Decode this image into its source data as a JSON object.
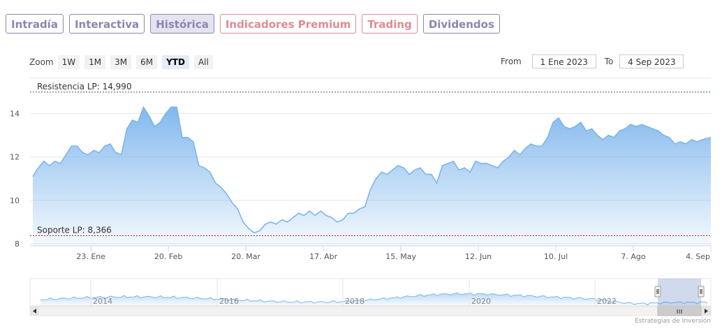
{
  "tabs": [
    {
      "label": "Intradía",
      "color": "#8b86b0",
      "active": false
    },
    {
      "label": "Interactiva",
      "color": "#8b86b0",
      "active": false
    },
    {
      "label": "Histórica",
      "color": "#8b86b0",
      "active": true
    },
    {
      "label": "Indicadores Premium",
      "color": "#e08b90",
      "active": false
    },
    {
      "label": "Trading",
      "color": "#e08b90",
      "active": false
    },
    {
      "label": "Dividendos",
      "color": "#8b86b0",
      "active": false
    }
  ],
  "zoom": {
    "label": "Zoom",
    "buttons": [
      "1W",
      "1M",
      "3M",
      "6M",
      "YTD",
      "All"
    ],
    "selected": "YTD"
  },
  "range": {
    "from_label": "From",
    "from_value": "1 Ene 2023",
    "to_label": "To",
    "to_value": "4 Sep 2023"
  },
  "credit": "Estrategias de Inversión",
  "colors": {
    "line": "#7cb5ec",
    "support_line": "#a52a2a",
    "resistance_line": "#2e6b2e"
  },
  "chart_data": {
    "type": "area",
    "title": "",
    "xlabel": "",
    "ylabel": "",
    "ylim": [
      7.9,
      15.6
    ],
    "xlim_days": [
      "2023-01-01",
      "2023-09-04"
    ],
    "y_ticks": [
      8,
      10,
      12,
      14
    ],
    "grid": true,
    "x_ticks": [
      {
        "date": "2023-01-23",
        "label": "23. Ene"
      },
      {
        "date": "2023-02-20",
        "label": "20. Feb"
      },
      {
        "date": "2023-03-20",
        "label": "20. Mar"
      },
      {
        "date": "2023-04-17",
        "label": "17. Abr"
      },
      {
        "date": "2023-05-15",
        "label": "15. May"
      },
      {
        "date": "2023-06-12",
        "label": "12. Jun"
      },
      {
        "date": "2023-07-10",
        "label": "10. Jul"
      },
      {
        "date": "2023-08-07",
        "label": "7. Ago"
      },
      {
        "date": "2023-09-04",
        "label": "4. Sep"
      }
    ],
    "plot_lines": [
      {
        "label": "Resistencia LP: 14,990",
        "value": 14.99
      },
      {
        "label": "Soporte LP: 8,366",
        "value": 8.366
      }
    ],
    "series": [
      {
        "x": [
          "2023-01-02",
          "2023-01-04",
          "2023-01-06",
          "2023-01-08",
          "2023-01-10",
          "2023-01-12",
          "2023-01-14",
          "2023-01-16",
          "2023-01-18",
          "2023-01-20",
          "2023-01-22",
          "2023-01-24",
          "2023-01-26",
          "2023-01-28",
          "2023-01-30",
          "2023-02-01",
          "2023-02-03",
          "2023-02-05",
          "2023-02-07",
          "2023-02-09",
          "2023-02-11",
          "2023-02-13",
          "2023-02-15",
          "2023-02-17",
          "2023-02-19",
          "2023-02-21",
          "2023-02-23",
          "2023-02-25",
          "2023-02-27",
          "2023-03-01",
          "2023-03-03",
          "2023-03-05",
          "2023-03-07",
          "2023-03-09",
          "2023-03-11",
          "2023-03-13",
          "2023-03-15",
          "2023-03-17",
          "2023-03-19",
          "2023-03-21",
          "2023-03-23",
          "2023-03-25",
          "2023-03-27",
          "2023-03-29",
          "2023-03-31",
          "2023-04-02",
          "2023-04-04",
          "2023-04-06",
          "2023-04-08",
          "2023-04-10",
          "2023-04-12",
          "2023-04-14",
          "2023-04-16",
          "2023-04-18",
          "2023-04-20",
          "2023-04-22",
          "2023-04-24",
          "2023-04-26",
          "2023-04-28",
          "2023-04-30",
          "2023-05-02",
          "2023-05-04",
          "2023-05-06",
          "2023-05-08",
          "2023-05-10",
          "2023-05-12",
          "2023-05-14",
          "2023-05-16",
          "2023-05-18",
          "2023-05-20",
          "2023-05-22",
          "2023-05-24",
          "2023-05-26",
          "2023-05-28",
          "2023-05-30",
          "2023-06-01",
          "2023-06-03",
          "2023-06-05",
          "2023-06-07",
          "2023-06-09",
          "2023-06-11",
          "2023-06-13",
          "2023-06-15",
          "2023-06-17",
          "2023-06-19",
          "2023-06-21",
          "2023-06-23",
          "2023-06-25",
          "2023-06-27",
          "2023-06-29",
          "2023-07-01",
          "2023-07-03",
          "2023-07-05",
          "2023-07-07",
          "2023-07-09",
          "2023-07-11",
          "2023-07-13",
          "2023-07-15",
          "2023-07-17",
          "2023-07-19",
          "2023-07-21",
          "2023-07-23",
          "2023-07-25",
          "2023-07-27",
          "2023-07-29",
          "2023-07-31",
          "2023-08-02",
          "2023-08-04",
          "2023-08-06",
          "2023-08-08",
          "2023-08-10",
          "2023-08-12",
          "2023-08-14",
          "2023-08-16",
          "2023-08-18",
          "2023-08-20",
          "2023-08-22",
          "2023-08-24",
          "2023-08-26",
          "2023-08-28",
          "2023-08-30",
          "2023-09-01",
          "2023-09-04"
        ],
        "values": [
          11.1,
          11.5,
          11.8,
          11.6,
          11.8,
          11.7,
          12.1,
          12.5,
          12.5,
          12.2,
          12.1,
          12.3,
          12.2,
          12.5,
          12.6,
          12.2,
          12.1,
          13.3,
          13.7,
          13.6,
          14.3,
          13.9,
          13.4,
          13.6,
          14.0,
          14.3,
          14.3,
          12.9,
          12.9,
          12.7,
          11.6,
          11.5,
          11.3,
          10.8,
          10.6,
          10.3,
          9.9,
          9.6,
          9.0,
          8.7,
          8.5,
          8.6,
          8.9,
          9.0,
          8.9,
          9.1,
          9.0,
          9.2,
          9.4,
          9.3,
          9.5,
          9.3,
          9.5,
          9.3,
          9.2,
          9.0,
          9.1,
          9.4,
          9.4,
          9.6,
          9.7,
          10.5,
          11.0,
          11.3,
          11.2,
          11.4,
          11.6,
          11.5,
          11.2,
          11.4,
          11.5,
          11.2,
          11.2,
          10.8,
          11.6,
          11.7,
          11.8,
          11.4,
          11.5,
          11.3,
          11.8,
          11.7,
          11.7,
          11.6,
          11.5,
          11.8,
          12.0,
          12.3,
          12.1,
          12.4,
          12.6,
          12.5,
          12.5,
          12.9,
          13.6,
          13.8,
          13.4,
          13.3,
          13.4,
          13.6,
          13.2,
          13.3,
          13.0,
          12.8,
          13.0,
          12.9,
          13.2,
          13.3,
          13.5,
          13.4,
          13.5,
          13.4,
          13.3,
          13.2,
          13.0,
          12.9,
          12.6,
          12.7,
          12.6,
          12.8,
          12.7,
          12.8,
          12.9
        ]
      }
    ],
    "navigator": {
      "x_labels": [
        "2014",
        "2016",
        "2018",
        "2020",
        "2022"
      ],
      "selection": "2023"
    }
  }
}
